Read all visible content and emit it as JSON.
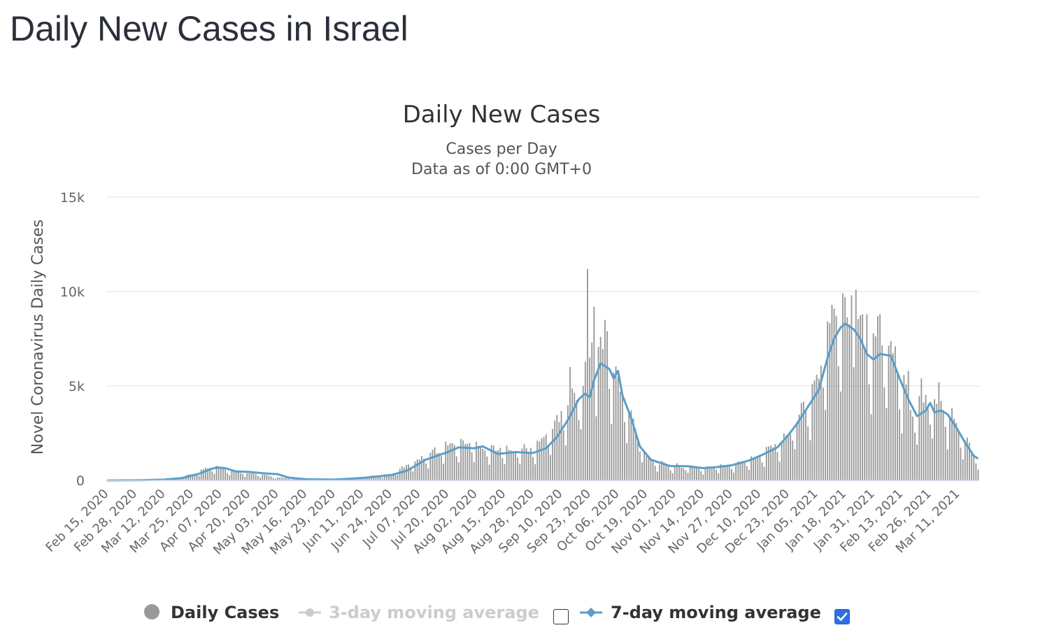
{
  "page": {
    "title": "Daily New Cases in Israel"
  },
  "legend": {
    "items": [
      {
        "label": "Daily Cases",
        "color": "#999999",
        "enabled": true
      },
      {
        "label": "3-day moving average",
        "color": "#cccccc",
        "enabled": false
      },
      {
        "label": "7-day moving average",
        "color": "#5a9ec9",
        "enabled": true
      }
    ]
  },
  "chart_data": {
    "type": "bar",
    "title": "Daily New Cases",
    "subtitle_lines": [
      "Cases per Day",
      "Data as of 0:00 GMT+0"
    ],
    "ylabel": "Novel Coronavirus Daily Cases",
    "xlabel": "",
    "ylim": [
      0,
      15000
    ],
    "yticks": [
      0,
      5000,
      10000,
      15000
    ],
    "ytick_labels": [
      "0",
      "5k",
      "10k",
      "15k"
    ],
    "x_start": "2020-02-15",
    "x_end": "2021-03-20",
    "xtick_labels": [
      "Feb 15, 2020",
      "Feb 28, 2020",
      "Mar 12, 2020",
      "Mar 25, 2020",
      "Apr 07, 2020",
      "Apr 20, 2020",
      "May 03, 2020",
      "May 16, 2020",
      "May 29, 2020",
      "Jun 11, 2020",
      "Jun 24, 2020",
      "Jul 07, 2020",
      "Jul 20, 2020",
      "Aug 02, 2020",
      "Aug 15, 2020",
      "Aug 28, 2020",
      "Sep 10, 2020",
      "Sep 23, 2020",
      "Oct 06, 2020",
      "Oct 19, 2020",
      "Nov 01, 2020",
      "Nov 14, 2020",
      "Nov 27, 2020",
      "Dec 10, 2020",
      "Dec 23, 2020",
      "Jan 05, 2021",
      "Jan 18, 2021",
      "Jan 31, 2021",
      "Feb 13, 2021",
      "Feb 26, 2021",
      "Mar 11, 2021"
    ],
    "grid": true,
    "legend_position": "bottom",
    "series": [
      {
        "name": "Daily Cases",
        "type": "bar",
        "color": "#999999",
        "anchors": [
          [
            "2020-02-15",
            0
          ],
          [
            "2020-03-01",
            10
          ],
          [
            "2020-03-12",
            30
          ],
          [
            "2020-03-20",
            150
          ],
          [
            "2020-03-25",
            300
          ],
          [
            "2020-04-01",
            600
          ],
          [
            "2020-04-05",
            700
          ],
          [
            "2020-04-12",
            450
          ],
          [
            "2020-04-20",
            350
          ],
          [
            "2020-05-03",
            150
          ],
          [
            "2020-05-16",
            20
          ],
          [
            "2020-05-29",
            40
          ],
          [
            "2020-06-11",
            150
          ],
          [
            "2020-06-24",
            300
          ],
          [
            "2020-07-01",
            700
          ],
          [
            "2020-07-10",
            1200
          ],
          [
            "2020-07-20",
            1700
          ],
          [
            "2020-07-30",
            1800
          ],
          [
            "2020-08-10",
            1500
          ],
          [
            "2020-08-20",
            1500
          ],
          [
            "2020-08-28",
            1500
          ],
          [
            "2020-09-05",
            2400
          ],
          [
            "2020-09-15",
            4000
          ],
          [
            "2020-09-20",
            4700
          ],
          [
            "2020-09-24",
            6300
          ],
          [
            "2020-09-30",
            6000
          ],
          [
            "2020-10-03",
            5500
          ],
          [
            "2020-10-10",
            3500
          ],
          [
            "2020-10-19",
            1200
          ],
          [
            "2020-10-25",
            800
          ],
          [
            "2020-11-01",
            700
          ],
          [
            "2020-11-14",
            600
          ],
          [
            "2020-11-27",
            750
          ],
          [
            "2020-12-10",
            1200
          ],
          [
            "2020-12-23",
            2200
          ],
          [
            "2020-12-30",
            3500
          ],
          [
            "2021-01-05",
            4700
          ],
          [
            "2021-01-10",
            6800
          ],
          [
            "2021-01-15",
            8300
          ],
          [
            "2021-01-20",
            8100
          ],
          [
            "2021-01-24",
            7500
          ],
          [
            "2021-01-28",
            6500
          ],
          [
            "2021-02-02",
            6800
          ],
          [
            "2021-02-07",
            6600
          ],
          [
            "2021-02-13",
            4800
          ],
          [
            "2021-02-18",
            3400
          ],
          [
            "2021-02-24",
            3800
          ],
          [
            "2021-03-01",
            3700
          ],
          [
            "2021-03-06",
            3200
          ],
          [
            "2021-03-12",
            2300
          ],
          [
            "2021-03-18",
            1300
          ],
          [
            "2021-03-20",
            1100
          ]
        ],
        "spikes": [
          [
            "2020-09-22",
            11200
          ],
          [
            "2020-09-24",
            7300
          ],
          [
            "2020-09-25",
            9200
          ],
          [
            "2020-09-28",
            7600
          ],
          [
            "2020-09-30",
            8500
          ],
          [
            "2020-10-01",
            7900
          ],
          [
            "2020-09-14",
            6000
          ],
          [
            "2021-01-12",
            9300
          ],
          [
            "2021-01-17",
            9900
          ],
          [
            "2021-01-18",
            9700
          ],
          [
            "2021-01-21",
            9800
          ],
          [
            "2021-01-23",
            10100
          ],
          [
            "2021-01-26",
            8800
          ],
          [
            "2021-01-28",
            8800
          ],
          [
            "2021-02-02",
            8700
          ],
          [
            "2021-02-03",
            8800
          ],
          [
            "2021-02-10",
            7100
          ],
          [
            "2021-02-16",
            5800
          ],
          [
            "2021-02-22",
            5400
          ],
          [
            "2021-03-02",
            5200
          ]
        ]
      },
      {
        "name": "7-day moving average",
        "type": "line",
        "color": "#5a9ec9",
        "points": [
          [
            "2020-02-15",
            0
          ],
          [
            "2020-03-01",
            10
          ],
          [
            "2020-03-12",
            40
          ],
          [
            "2020-03-20",
            120
          ],
          [
            "2020-03-28",
            350
          ],
          [
            "2020-04-02",
            580
          ],
          [
            "2020-04-05",
            680
          ],
          [
            "2020-04-09",
            650
          ],
          [
            "2020-04-14",
            470
          ],
          [
            "2020-04-20",
            450
          ],
          [
            "2020-04-26",
            380
          ],
          [
            "2020-05-03",
            330
          ],
          [
            "2020-05-08",
            150
          ],
          [
            "2020-05-16",
            60
          ],
          [
            "2020-05-29",
            40
          ],
          [
            "2020-06-11",
            130
          ],
          [
            "2020-06-24",
            280
          ],
          [
            "2020-07-01",
            500
          ],
          [
            "2020-07-10",
            1100
          ],
          [
            "2020-07-20",
            1500
          ],
          [
            "2020-07-25",
            1750
          ],
          [
            "2020-08-01",
            1700
          ],
          [
            "2020-08-05",
            1800
          ],
          [
            "2020-08-12",
            1400
          ],
          [
            "2020-08-20",
            1500
          ],
          [
            "2020-08-28",
            1450
          ],
          [
            "2020-09-03",
            1700
          ],
          [
            "2020-09-08",
            2300
          ],
          [
            "2020-09-13",
            3200
          ],
          [
            "2020-09-18",
            4300
          ],
          [
            "2020-09-21",
            4600
          ],
          [
            "2020-09-23",
            4400
          ],
          [
            "2020-09-25",
            5300
          ],
          [
            "2020-09-28",
            6200
          ],
          [
            "2020-10-02",
            5900
          ],
          [
            "2020-10-04",
            5400
          ],
          [
            "2020-10-06",
            5800
          ],
          [
            "2020-10-08",
            4500
          ],
          [
            "2020-10-12",
            3300
          ],
          [
            "2020-10-16",
            1800
          ],
          [
            "2020-10-21",
            1100
          ],
          [
            "2020-10-26",
            900
          ],
          [
            "2020-10-30",
            760
          ],
          [
            "2020-11-07",
            750
          ],
          [
            "2020-11-14",
            650
          ],
          [
            "2020-11-20",
            700
          ],
          [
            "2020-11-27",
            800
          ],
          [
            "2020-12-05",
            1050
          ],
          [
            "2020-12-12",
            1400
          ],
          [
            "2020-12-18",
            1750
          ],
          [
            "2020-12-23",
            2400
          ],
          [
            "2020-12-27",
            3000
          ],
          [
            "2021-01-01",
            3900
          ],
          [
            "2021-01-06",
            4800
          ],
          [
            "2021-01-10",
            6500
          ],
          [
            "2021-01-13",
            7500
          ],
          [
            "2021-01-16",
            8100
          ],
          [
            "2021-01-18",
            8300
          ],
          [
            "2021-01-22",
            8000
          ],
          [
            "2021-01-25",
            7500
          ],
          [
            "2021-01-28",
            6700
          ],
          [
            "2021-01-31",
            6400
          ],
          [
            "2021-02-03",
            6700
          ],
          [
            "2021-02-08",
            6600
          ],
          [
            "2021-02-12",
            5400
          ],
          [
            "2021-02-16",
            4300
          ],
          [
            "2021-02-20",
            3400
          ],
          [
            "2021-02-24",
            3700
          ],
          [
            "2021-02-26",
            4100
          ],
          [
            "2021-02-28",
            3600
          ],
          [
            "2021-03-03",
            3700
          ],
          [
            "2021-03-06",
            3500
          ],
          [
            "2021-03-10",
            2800
          ],
          [
            "2021-03-14",
            2000
          ],
          [
            "2021-03-18",
            1300
          ],
          [
            "2021-03-20",
            1150
          ]
        ]
      }
    ]
  }
}
